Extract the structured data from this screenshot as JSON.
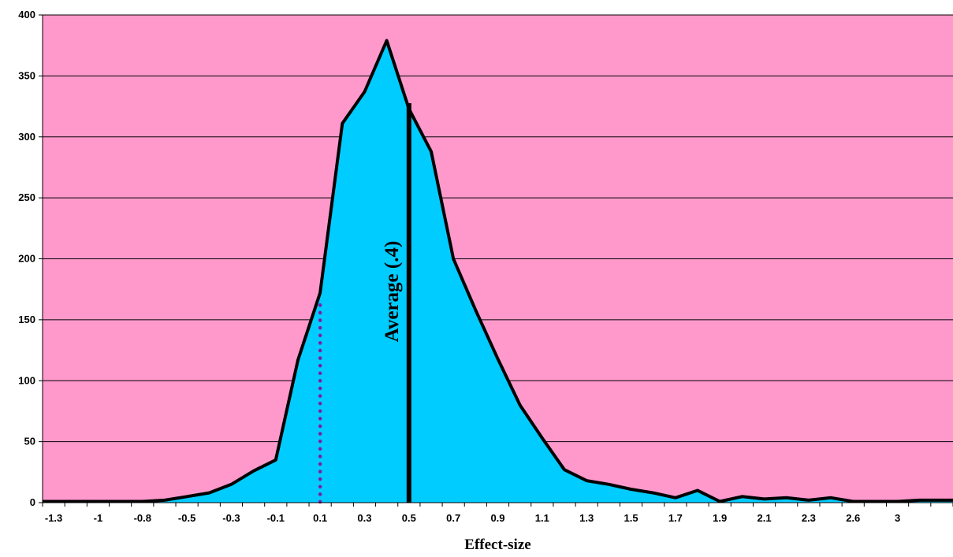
{
  "chart_data": {
    "type": "area",
    "xlabel": "Effect-size",
    "ylabel": "",
    "ylim": [
      0,
      400
    ],
    "yticks": [
      0,
      50,
      100,
      150,
      200,
      250,
      300,
      350,
      400
    ],
    "grid": true,
    "colors": {
      "plot_background": "#ff99cc",
      "area_fill": "#00ccff",
      "line": "#000000",
      "dotted_marker": "#7a1fa2"
    },
    "x_tick_labels": [
      "-1.3",
      "-1",
      "-0.8",
      "-0.5",
      "-0.3",
      "-0.1",
      "0.1",
      "0.3",
      "0.5",
      "0.7",
      "0.9",
      "1.1",
      "1.3",
      "1.5",
      "1.7",
      "1.9",
      "2.1",
      "2.3",
      "2.6",
      "3"
    ],
    "categories": [
      "-1.3",
      "-1.2",
      "-1.1",
      "-1",
      "-0.9",
      "-0.8",
      "-0.7",
      "-0.5",
      "-0.4",
      "-0.3",
      "-0.2",
      "-0.1",
      "0",
      "0.1",
      "0.2",
      "0.3",
      "0.4",
      "0.5",
      "0.6",
      "0.7",
      "0.8",
      "0.9",
      "1",
      "1.1",
      "1.2",
      "1.3",
      "1.4",
      "1.5",
      "1.6",
      "1.7",
      "1.8",
      "1.9",
      "2",
      "2.1",
      "2.2",
      "2.3",
      "2.4",
      "2.6",
      "2.8",
      "3",
      "3.2"
    ],
    "values": [
      1,
      1,
      1,
      1,
      1,
      2,
      5,
      8,
      15,
      26,
      35,
      117,
      172,
      311,
      337,
      379,
      323,
      288,
      200,
      158,
      118,
      80,
      53,
      27,
      18,
      15,
      11,
      8,
      4,
      10,
      1,
      5,
      3,
      4,
      2,
      4,
      1,
      1,
      1,
      2,
      2
    ],
    "annotations": [
      {
        "type": "vertical-line",
        "style": "solid",
        "x": 0.4,
        "label": "Average  (.4)"
      },
      {
        "type": "vertical-line",
        "style": "dotted",
        "x": 0.0,
        "y_top": 162
      }
    ]
  }
}
